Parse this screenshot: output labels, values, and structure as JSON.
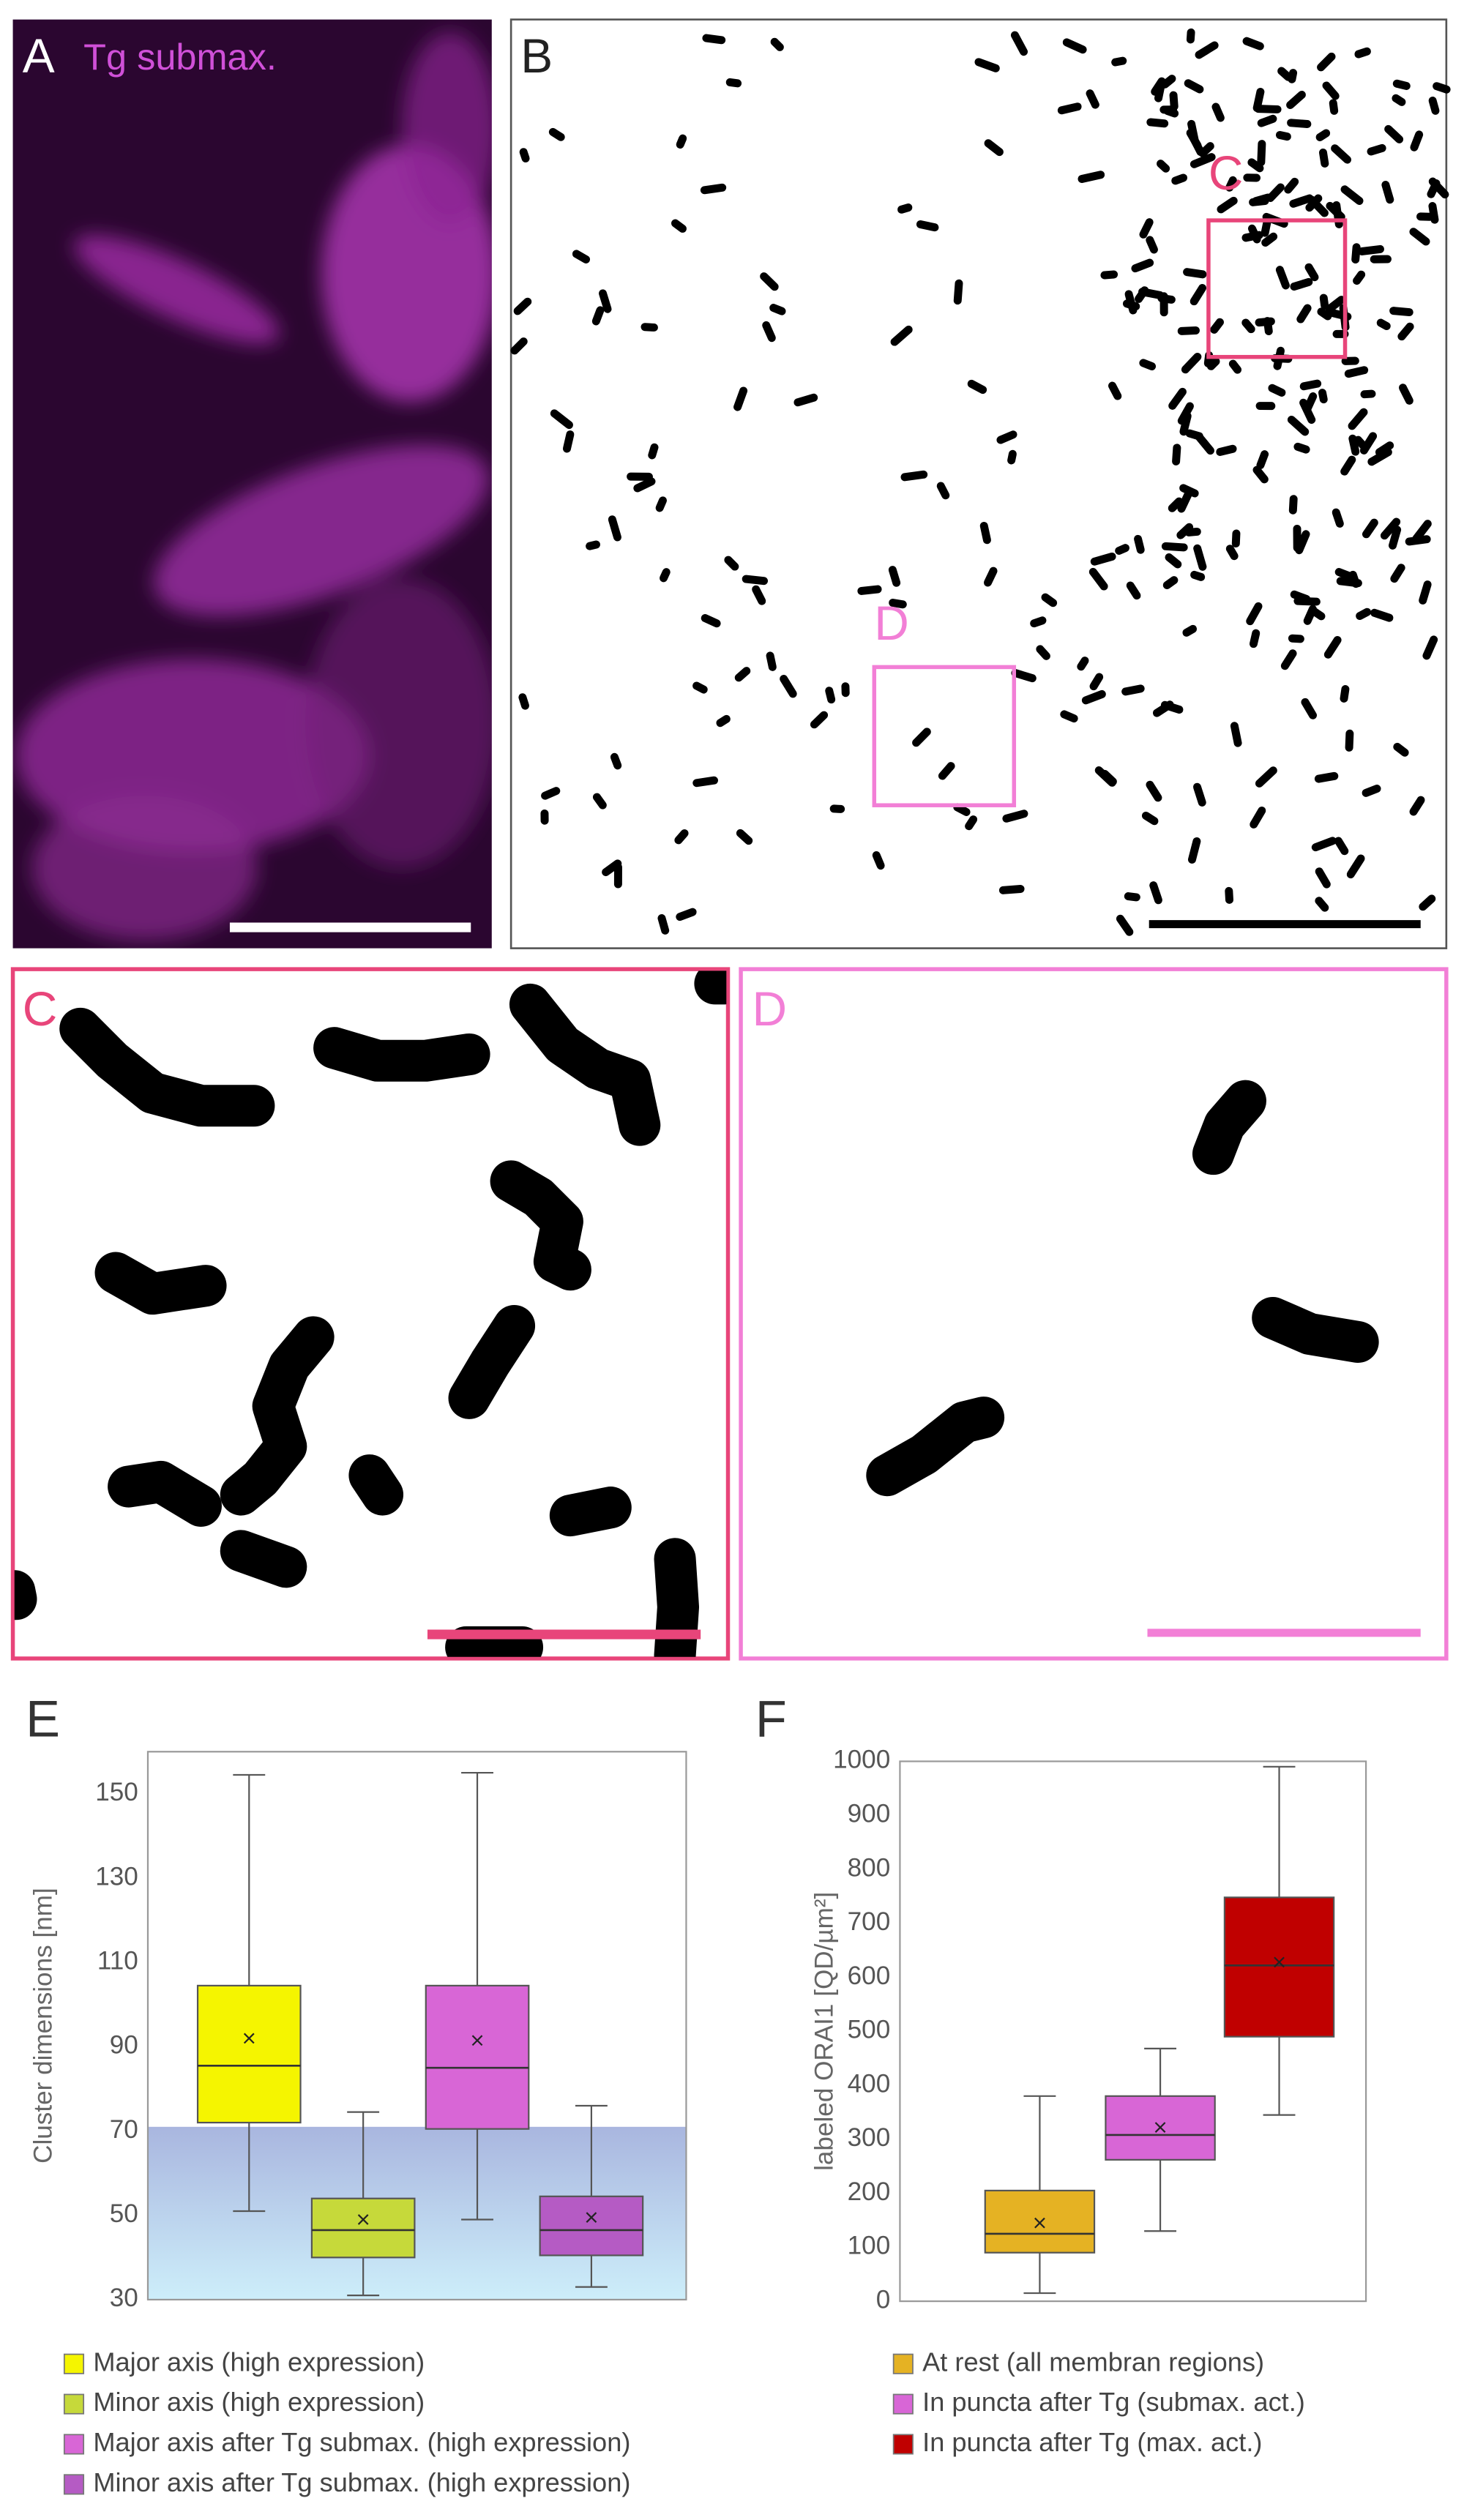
{
  "panels": {
    "A": {
      "label": "A",
      "caption": "Tg submax."
    },
    "B": {
      "label": "B"
    },
    "C": {
      "label": "C"
    },
    "D": {
      "label": "D"
    },
    "E": {
      "label": "E"
    },
    "F": {
      "label": "F"
    }
  },
  "chart_data": [
    {
      "type": "box",
      "y_label": "Cluster dimensions [nm]",
      "ylim": [
        30,
        160
      ],
      "yticks": [
        30,
        50,
        70,
        90,
        110,
        130,
        150
      ],
      "shaded_range": [
        30,
        71
      ],
      "series": [
        {
          "name": "Major axis (high expression)",
          "color": "#f5f500",
          "values": [
            51,
            72,
            85.5,
            104.5,
            154.5
          ],
          "mean": 92
        },
        {
          "name": "Minor axis (high expression)",
          "color": "#c6d93a",
          "values": [
            31,
            40,
            46.5,
            54,
            74.5
          ],
          "mean": 49
        },
        {
          "name": "Major axis after Tg submax. (high expression)",
          "color": "#d866d6",
          "values": [
            49,
            70.5,
            85,
            104.5,
            155
          ],
          "mean": 91.5
        },
        {
          "name": "Minor axis after Tg submax. (high expression)",
          "color": "#b55bc4",
          "values": [
            33,
            40.5,
            46.5,
            54.5,
            76
          ],
          "mean": 49.5
        }
      ]
    },
    {
      "type": "box",
      "y_label": "labeled ORAI1 [QD/µm²]",
      "ylim": [
        0,
        1000
      ],
      "yticks": [
        0,
        100,
        200,
        300,
        400,
        500,
        600,
        700,
        800,
        900,
        1000
      ],
      "series": [
        {
          "name": "At rest (all membran regions)",
          "color": "#e5b223",
          "values": [
            15,
            90,
            125,
            205,
            380
          ],
          "mean": 145
        },
        {
          "name": "In puncta after Tg (submax. act.)",
          "color": "#d866d6",
          "values": [
            130,
            262,
            308,
            380,
            468
          ],
          "mean": 322
        },
        {
          "name": "In puncta after Tg (max. act.)",
          "color": "#c00000",
          "values": [
            345,
            490,
            622,
            748,
            990
          ],
          "mean": 628
        }
      ]
    }
  ]
}
